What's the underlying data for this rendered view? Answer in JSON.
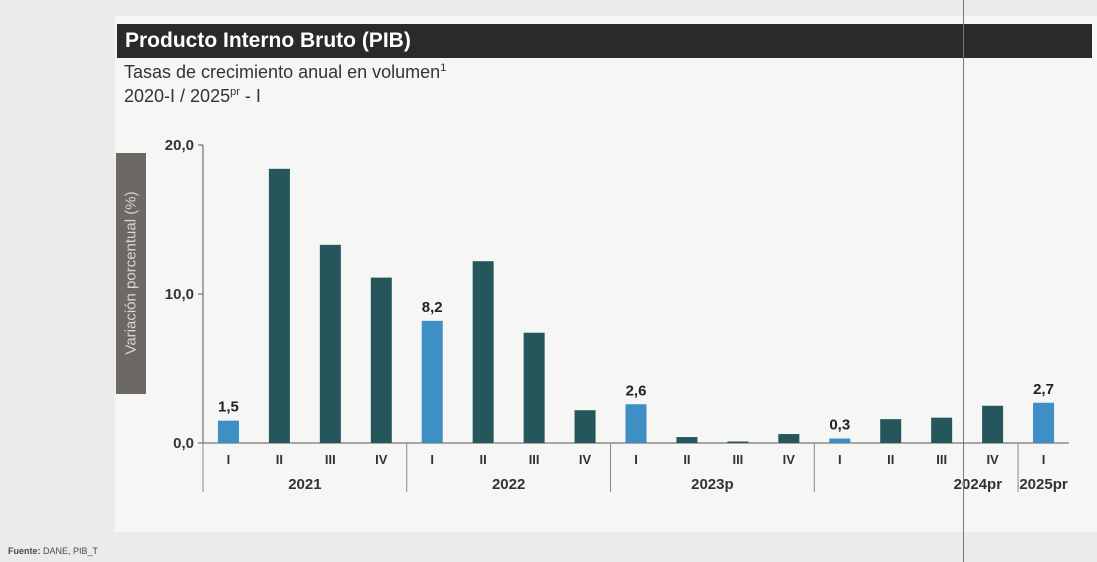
{
  "header": {
    "title": "Producto Interno Bruto (PIB)",
    "subtitle_line1": "Tasas de crecimiento anual en volumen",
    "subtitle_line1_sup": "1",
    "subtitle_line2_main": "2020-I / 2025",
    "subtitle_line2_sup": "pr",
    "subtitle_line2_end": " - I"
  },
  "source": {
    "label": "Fuente:",
    "text": " DANE, PIB_T"
  },
  "colors": {
    "dark_bar": "#24565c",
    "highlight_bar": "#3d8fc4",
    "title_bg": "#2b2a28"
  },
  "chart_data": {
    "type": "bar",
    "ylabel": "Variación porcentual (%)",
    "ylim": [
      0,
      20
    ],
    "y_ticks": [
      "0,0",
      "10,0",
      "20,0"
    ],
    "categories": [
      "I",
      "II",
      "III",
      "IV",
      "I",
      "II",
      "III",
      "IV",
      "I",
      "II",
      "III",
      "IV",
      "I",
      "II",
      "III",
      "IV",
      "I"
    ],
    "years": [
      "2021",
      "2022",
      "2023p",
      "2024pr",
      "2025pr"
    ],
    "year_quarter_counts": [
      4,
      4,
      4,
      4,
      1
    ],
    "values": [
      1.5,
      18.4,
      13.3,
      11.1,
      8.2,
      12.2,
      7.4,
      2.2,
      2.6,
      0.4,
      0.1,
      0.6,
      0.3,
      1.6,
      1.7,
      2.5,
      2.7
    ],
    "highlight": [
      true,
      false,
      false,
      false,
      true,
      false,
      false,
      false,
      true,
      false,
      false,
      false,
      true,
      false,
      false,
      false,
      true
    ],
    "data_labels": [
      "1,5",
      "",
      "",
      "",
      "8,2",
      "",
      "",
      "",
      "2,6",
      "",
      "",
      "",
      "0,3",
      "",
      "",
      "",
      "2,7"
    ]
  }
}
